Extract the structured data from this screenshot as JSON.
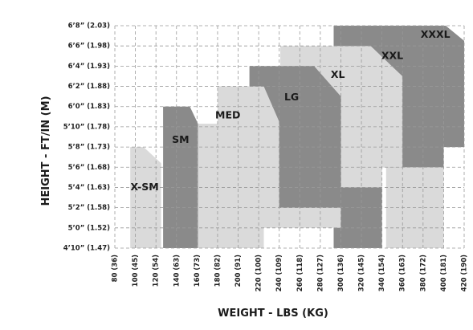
{
  "chart_data": {
    "type": "area",
    "xlabel": "WEIGHT - LBS (KG)",
    "ylabel": "HEIGHT - FT/IN (M)",
    "xlim": [
      80,
      420
    ],
    "ylim": [
      58,
      80
    ],
    "grid": true,
    "x_ticks": [
      {
        "value": 80,
        "label": "80 (36)"
      },
      {
        "value": 100,
        "label": "100 (45)"
      },
      {
        "value": 120,
        "label": "120 (54)"
      },
      {
        "value": 140,
        "label": "140 (63)"
      },
      {
        "value": 160,
        "label": "160 (73)"
      },
      {
        "value": 180,
        "label": "180 (82)"
      },
      {
        "value": 200,
        "label": "200 (91)"
      },
      {
        "value": 220,
        "label": "220 (100)"
      },
      {
        "value": 240,
        "label": "240 (109)"
      },
      {
        "value": 260,
        "label": "260 (118)"
      },
      {
        "value": 280,
        "label": "280 (127)"
      },
      {
        "value": 300,
        "label": "300 (136)"
      },
      {
        "value": 320,
        "label": "320 (145)"
      },
      {
        "value": 340,
        "label": "340 (154)"
      },
      {
        "value": 360,
        "label": "360 (163)"
      },
      {
        "value": 380,
        "label": "380 (172)"
      },
      {
        "value": 400,
        "label": "400 (181)"
      },
      {
        "value": 420,
        "label": "420 (190)"
      }
    ],
    "y_ticks": [
      {
        "value": 58,
        "label": "4’10” (1.47)"
      },
      {
        "value": 60,
        "label": "5’0” (1.52)"
      },
      {
        "value": 62,
        "label": "5’2” (1.58)"
      },
      {
        "value": 64,
        "label": "5’4” (1.63)"
      },
      {
        "value": 66,
        "label": "5’6” (1.68)"
      },
      {
        "value": 68,
        "label": "5’8” (1.73)"
      },
      {
        "value": 70,
        "label": "5’10” (1.78)"
      },
      {
        "value": 72,
        "label": "6’0” (1.83)"
      },
      {
        "value": 74,
        "label": "6’2” (1.88)"
      },
      {
        "value": 76,
        "label": "6’4” (1.93)"
      },
      {
        "value": 78,
        "label": "6’6” (1.98)"
      },
      {
        "value": 80,
        "label": "6’8” (2.03)"
      }
    ],
    "regions": [
      {
        "name": "XXXL",
        "color": "#dadada",
        "polygon": [
          [
            344,
            58
          ],
          [
            344,
            80
          ],
          [
            402,
            80
          ],
          [
            420,
            78.5
          ],
          [
            420,
            68
          ],
          [
            400,
            68
          ],
          [
            400,
            58
          ]
        ]
      },
      {
        "name": "XXL",
        "color": "#8a8a8a",
        "polygon": [
          [
            293,
            58
          ],
          [
            293,
            80
          ],
          [
            402,
            80
          ],
          [
            420,
            78.5
          ],
          [
            420,
            68
          ],
          [
            400,
            68
          ],
          [
            400,
            66
          ],
          [
            340,
            66
          ],
          [
            340,
            58
          ]
        ]
      },
      {
        "name": "XL",
        "color": "#dadada",
        "polygon": [
          [
            241,
            62
          ],
          [
            241,
            78
          ],
          [
            329,
            78
          ],
          [
            360,
            75
          ],
          [
            360,
            66
          ],
          [
            340,
            66
          ],
          [
            340,
            64
          ],
          [
            300,
            64
          ],
          [
            300,
            62
          ]
        ]
      },
      {
        "name": "LG",
        "color": "#8a8a8a",
        "polygon": [
          [
            211,
            62
          ],
          [
            211,
            76
          ],
          [
            274,
            76
          ],
          [
            300,
            73
          ],
          [
            300,
            62
          ]
        ]
      },
      {
        "name": "MED",
        "color": "#dadada",
        "polygon": [
          [
            180,
            60
          ],
          [
            180,
            74
          ],
          [
            225,
            74
          ],
          [
            240,
            70.5
          ],
          [
            240,
            62
          ],
          [
            300,
            62
          ],
          [
            300,
            64
          ],
          [
            300,
            60
          ]
        ]
      },
      {
        "name": "SM",
        "color": "#8a8a8a",
        "polygon": [
          [
            127,
            58
          ],
          [
            127,
            72
          ],
          [
            153,
            72
          ],
          [
            161,
            70.3
          ],
          [
            161,
            58
          ]
        ]
      },
      {
        "name": "MED-lower",
        "color": "#dadada",
        "polygon": [
          [
            161,
            58
          ],
          [
            161,
            70.3
          ],
          [
            180,
            70.3
          ],
          [
            180,
            60
          ],
          [
            225,
            60
          ],
          [
            225,
            58
          ]
        ]
      },
      {
        "name": "X-SM",
        "color": "#dadada",
        "polygon": [
          [
            95,
            58
          ],
          [
            95,
            68
          ],
          [
            108,
            68
          ],
          [
            125,
            66.4
          ],
          [
            125,
            58
          ]
        ]
      }
    ],
    "size_labels": [
      {
        "text": "X-SM",
        "x": 109,
        "y": 64
      },
      {
        "text": "SM",
        "x": 144,
        "y": 68.7
      },
      {
        "text": "MED",
        "x": 190,
        "y": 71.1
      },
      {
        "text": "LG",
        "x": 252,
        "y": 72.9
      },
      {
        "text": "XL",
        "x": 297,
        "y": 75.1
      },
      {
        "text": "XXL",
        "x": 350,
        "y": 77.0
      },
      {
        "text": "XXXL",
        "x": 392,
        "y": 79.1
      }
    ]
  }
}
